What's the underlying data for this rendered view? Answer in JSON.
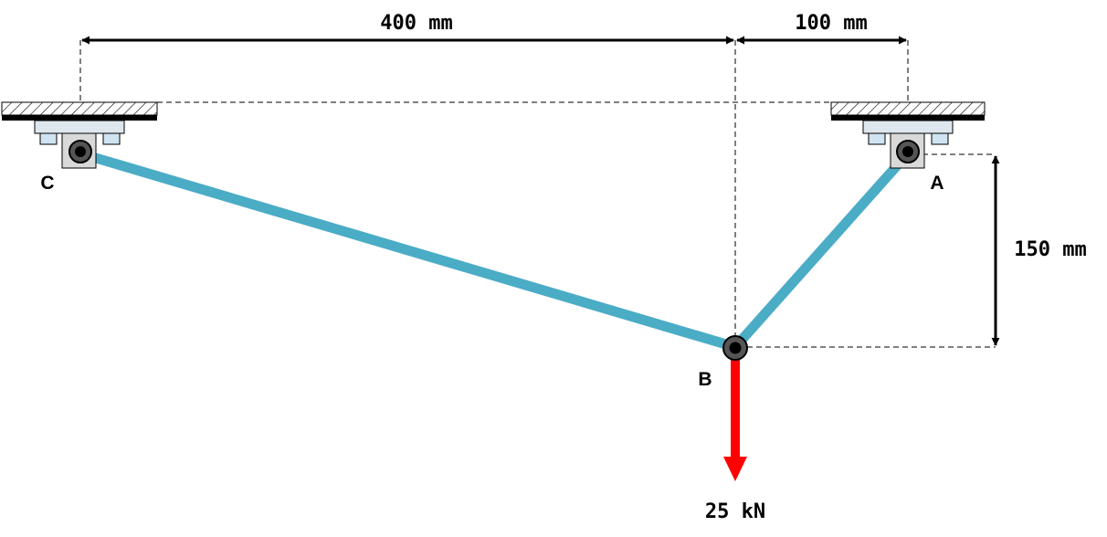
{
  "dimensions": {
    "horizontal_left": "400 mm",
    "horizontal_right": "100 mm",
    "vertical": "150 mm"
  },
  "points": {
    "c": "C",
    "a": "A",
    "b": "B"
  },
  "load": {
    "label": "25 kN",
    "color": "#ff0000"
  },
  "colors": {
    "member": "#4bacc6",
    "support_plate": "#dfe7ee",
    "support_block": "#d9d9d9",
    "support_bolt": "#cfe3f2"
  }
}
